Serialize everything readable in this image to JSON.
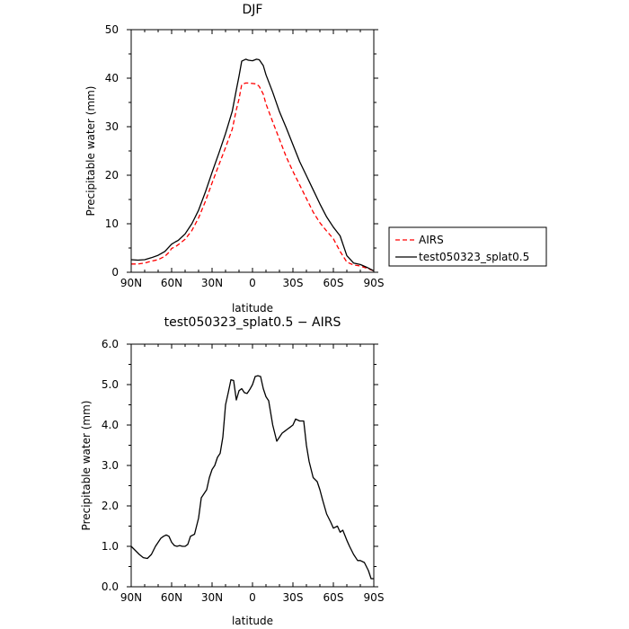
{
  "chart_data": [
    {
      "type": "line",
      "title": "DJF",
      "xlabel": "latitude",
      "ylabel": "Precipitable water (mm)",
      "xlim": [
        90,
        -90
      ],
      "ylim": [
        0,
        50
      ],
      "x_ticks": [
        90,
        60,
        30,
        0,
        -30,
        -60,
        -90
      ],
      "x_tick_labels": [
        "90N",
        "60N",
        "30N",
        "0",
        "30S",
        "60S",
        "90S"
      ],
      "y_ticks": [
        0,
        10,
        20,
        30,
        40,
        50
      ],
      "y_tick_labels": [
        "0",
        "10",
        "20",
        "30",
        "40",
        "50"
      ],
      "legend_position": "right",
      "series": [
        {
          "name": "AIRS",
          "color": "#ff0000",
          "style": "dashed",
          "x": [
            90,
            85,
            80,
            75,
            70,
            65,
            62,
            60,
            57,
            55,
            50,
            45,
            40,
            35,
            30,
            25,
            20,
            15,
            12,
            10,
            8,
            5,
            3,
            0,
            -3,
            -5,
            -8,
            -10,
            -15,
            -20,
            -25,
            -30,
            -35,
            -40,
            -45,
            -50,
            -55,
            -60,
            -65,
            -70,
            -75,
            -80,
            -85,
            -90
          ],
          "y": [
            1.7,
            1.7,
            1.9,
            2.3,
            2.6,
            3.3,
            4.1,
            4.9,
            5.3,
            5.7,
            6.8,
            8.6,
            11.2,
            14.6,
            18.4,
            22.1,
            25.7,
            29.5,
            33.5,
            35.7,
            38.7,
            39.0,
            39.0,
            38.9,
            38.8,
            38.3,
            36.7,
            34.7,
            31.0,
            27.4,
            23.8,
            20.8,
            18.0,
            15.2,
            12.4,
            10.2,
            8.5,
            6.9,
            4.3,
            2.1,
            1.5,
            1.3,
            0.8,
            0.3
          ]
        },
        {
          "name": "test050323_splat0.5",
          "color": "#000000",
          "style": "solid",
          "x": [
            90,
            85,
            80,
            75,
            70,
            65,
            62,
            60,
            57,
            55,
            50,
            45,
            40,
            35,
            30,
            25,
            20,
            15,
            12,
            10,
            8,
            5,
            3,
            0,
            -3,
            -5,
            -8,
            -10,
            -15,
            -20,
            -25,
            -30,
            -35,
            -40,
            -45,
            -50,
            -55,
            -60,
            -65,
            -70,
            -75,
            -80,
            -85,
            -90
          ],
          "y": [
            2.6,
            2.5,
            2.6,
            3.0,
            3.5,
            4.3,
            5.2,
            5.8,
            6.3,
            6.6,
            7.9,
            10.0,
            12.8,
            16.5,
            20.6,
            24.5,
            28.6,
            33.2,
            37.6,
            40.4,
            43.5,
            43.9,
            43.7,
            43.6,
            43.9,
            43.8,
            42.6,
            40.7,
            37.1,
            33.1,
            29.8,
            26.3,
            22.8,
            19.9,
            17.0,
            14.1,
            11.4,
            9.3,
            7.5,
            3.4,
            1.9,
            1.6,
            1.0,
            0.3
          ]
        }
      ]
    },
    {
      "type": "line",
      "title": "test050323_splat0.5 − AIRS",
      "xlabel": "latitude",
      "ylabel": "Precipitable water (mm)",
      "xlim": [
        90,
        -90
      ],
      "ylim": [
        0,
        6
      ],
      "x_ticks": [
        90,
        60,
        30,
        0,
        -30,
        -60,
        -90
      ],
      "x_tick_labels": [
        "90N",
        "60N",
        "30N",
        "0",
        "30S",
        "60S",
        "90S"
      ],
      "y_ticks": [
        0,
        1,
        2,
        3,
        4,
        5,
        6
      ],
      "y_tick_labels": [
        "0.0",
        "1.0",
        "2.0",
        "3.0",
        "4.0",
        "5.0",
        "6.0"
      ],
      "series": [
        {
          "color": "#000000",
          "style": "solid",
          "x": [
            90,
            87,
            84,
            81,
            78,
            75,
            72,
            68,
            66,
            64,
            62,
            60,
            58,
            56,
            54,
            52,
            50,
            48,
            46,
            43,
            40,
            38,
            36,
            34,
            32,
            30,
            28,
            26,
            24,
            22,
            20,
            18,
            16,
            14,
            12,
            10,
            8,
            6,
            4,
            2,
            0,
            -2,
            -4,
            -6,
            -8,
            -10,
            -12,
            -15,
            -18,
            -20,
            -22,
            -24,
            -26,
            -28,
            -30,
            -32,
            -35,
            -38,
            -40,
            -42,
            -45,
            -48,
            -50,
            -52,
            -55,
            -58,
            -60,
            -63,
            -65,
            -67,
            -70,
            -72,
            -75,
            -78,
            -80,
            -83,
            -86,
            -88,
            -90
          ],
          "y": [
            1.0,
            0.9,
            0.8,
            0.72,
            0.7,
            0.8,
            1.0,
            1.2,
            1.25,
            1.28,
            1.25,
            1.1,
            1.02,
            1.0,
            1.02,
            1.0,
            1.0,
            1.05,
            1.25,
            1.3,
            1.7,
            2.2,
            2.3,
            2.4,
            2.7,
            2.9,
            3.0,
            3.2,
            3.3,
            3.7,
            4.5,
            4.8,
            5.12,
            5.1,
            4.62,
            4.85,
            4.9,
            4.8,
            4.78,
            4.88,
            5.0,
            5.2,
            5.22,
            5.2,
            4.9,
            4.7,
            4.6,
            4.0,
            3.6,
            3.7,
            3.8,
            3.85,
            3.9,
            3.95,
            4.0,
            4.15,
            4.1,
            4.1,
            3.5,
            3.1,
            2.7,
            2.6,
            2.4,
            2.15,
            1.8,
            1.6,
            1.45,
            1.5,
            1.35,
            1.4,
            1.15,
            1.0,
            0.8,
            0.65,
            0.65,
            0.6,
            0.4,
            0.2,
            0.2
          ]
        }
      ]
    }
  ]
}
